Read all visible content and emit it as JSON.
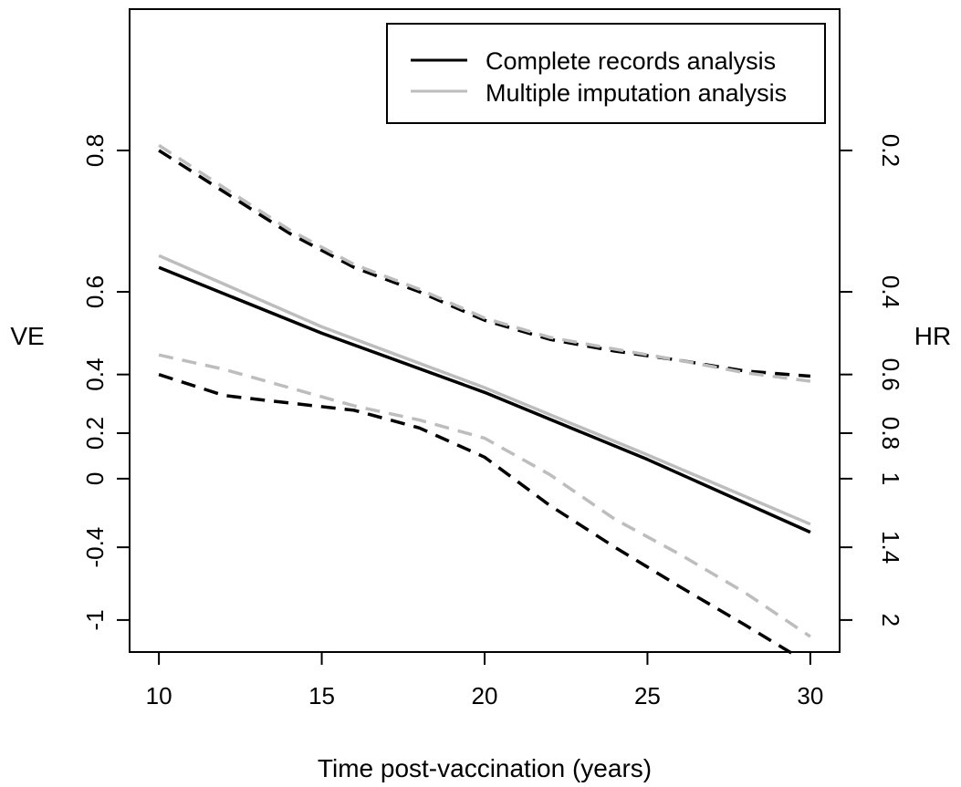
{
  "chart_data": {
    "type": "line",
    "title": "",
    "xlabel": "Time post-vaccination (years)",
    "ylabel": "VE",
    "y2label": "HR",
    "xlim": [
      9.1,
      30.9
    ],
    "x_ticks": [
      10,
      15,
      20,
      25,
      30
    ],
    "hr_range": [
      0.1,
      2.34
    ],
    "ve_ticks": [
      {
        "value": 0.8,
        "label": "0.8"
      },
      {
        "value": 0.6,
        "label": "0.6"
      },
      {
        "value": 0.4,
        "label": "0.4"
      },
      {
        "value": 0.2,
        "label": "0.2"
      },
      {
        "value": 0,
        "label": "0"
      },
      {
        "value": -0.4,
        "label": "-0.4"
      },
      {
        "value": -1,
        "label": "-1"
      }
    ],
    "hr_ticks": [
      {
        "value": 0.2,
        "label": "0.2"
      },
      {
        "value": 0.4,
        "label": "0.4"
      },
      {
        "value": 0.6,
        "label": "0.6"
      },
      {
        "value": 0.8,
        "label": "0.8"
      },
      {
        "value": 1,
        "label": "1"
      },
      {
        "value": 1.4,
        "label": "1.4"
      },
      {
        "value": 2,
        "label": "2"
      }
    ],
    "legend": {
      "position": "top-right",
      "entries": [
        {
          "label": "Complete records analysis",
          "color": "#000000"
        },
        {
          "label": "Multiple imputation analysis",
          "color": "#bdbdbd"
        }
      ]
    },
    "series": [
      {
        "name": "Complete records analysis",
        "role": "estimate",
        "style": "solid",
        "color": "#000000",
        "points": [
          [
            10,
            0.645
          ],
          [
            15,
            0.51
          ],
          [
            20,
            0.345
          ],
          [
            25,
            0.09
          ],
          [
            30,
            -0.3
          ]
        ]
      },
      {
        "name": "Complete records analysis",
        "role": "upper",
        "style": "dashed",
        "color": "#000000",
        "points": [
          [
            10,
            0.8
          ],
          [
            12,
            0.755
          ],
          [
            14,
            0.7
          ],
          [
            16,
            0.645
          ],
          [
            18,
            0.6
          ],
          [
            20,
            0.54
          ],
          [
            22,
            0.495
          ],
          [
            24,
            0.465
          ],
          [
            26,
            0.44
          ],
          [
            28,
            0.41
          ],
          [
            30,
            0.395
          ]
        ]
      },
      {
        "name": "Complete records analysis",
        "role": "lower",
        "style": "dashed",
        "color": "#000000",
        "points": [
          [
            10,
            0.4
          ],
          [
            12,
            0.335
          ],
          [
            14,
            0.31
          ],
          [
            16,
            0.285
          ],
          [
            18,
            0.22
          ],
          [
            20,
            0.1
          ],
          [
            22,
            -0.14
          ],
          [
            24,
            -0.4
          ],
          [
            26,
            -0.7
          ],
          [
            28,
            -1.05
          ],
          [
            29.5,
            -1.37
          ]
        ]
      },
      {
        "name": "Multiple imputation analysis",
        "role": "estimate",
        "style": "solid",
        "color": "#bdbdbd",
        "points": [
          [
            10,
            0.665
          ],
          [
            15,
            0.525
          ],
          [
            20,
            0.36
          ],
          [
            25,
            0.11
          ],
          [
            30,
            -0.25
          ]
        ]
      },
      {
        "name": "Multiple imputation analysis",
        "role": "upper",
        "style": "dashed",
        "color": "#bdbdbd",
        "points": [
          [
            10,
            0.805
          ],
          [
            12,
            0.76
          ],
          [
            14,
            0.705
          ],
          [
            16,
            0.65
          ],
          [
            18,
            0.605
          ],
          [
            20,
            0.545
          ],
          [
            22,
            0.5
          ],
          [
            24,
            0.47
          ],
          [
            26,
            0.44
          ],
          [
            28,
            0.405
          ],
          [
            30,
            0.38
          ]
        ]
      },
      {
        "name": "Multiple imputation analysis",
        "role": "lower",
        "style": "dashed",
        "color": "#bdbdbd",
        "points": [
          [
            10,
            0.455
          ],
          [
            12,
            0.415
          ],
          [
            14,
            0.36
          ],
          [
            16,
            0.3
          ],
          [
            18,
            0.25
          ],
          [
            20,
            0.18
          ],
          [
            22,
            0.02
          ],
          [
            24,
            -0.22
          ],
          [
            26,
            -0.45
          ],
          [
            28,
            -0.75
          ],
          [
            30,
            -1.17
          ]
        ]
      }
    ]
  }
}
